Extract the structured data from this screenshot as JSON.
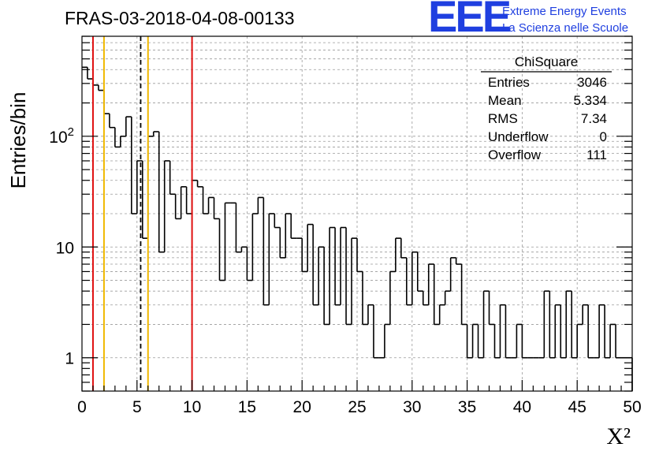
{
  "header": {
    "title": "FRAS-03-2018-04-08-00133",
    "logo": {
      "mark": "EEE",
      "line1": "Extreme Energy Events",
      "line2": "La Scienza nelle Scuole"
    }
  },
  "stats_box": {
    "title": "ChiSquare",
    "rows": [
      {
        "label": "Entries",
        "value": "3046"
      },
      {
        "label": "Mean",
        "value": "5.334"
      },
      {
        "label": "RMS",
        "value": "7.34"
      },
      {
        "label": "Underflow",
        "value": "0"
      },
      {
        "label": "Overflow",
        "value": "111"
      }
    ]
  },
  "chart_data": {
    "type": "histogram",
    "title": "FRAS-03-2018-04-08-00133",
    "xlabel": "X²",
    "ylabel": "Entries/bin",
    "xlim": [
      0,
      50
    ],
    "ylim": [
      0.5,
      800
    ],
    "yscale": "log",
    "bin_width": 0.5,
    "x_ticks": [
      "0",
      "5",
      "10",
      "15",
      "20",
      "25",
      "30",
      "35",
      "40",
      "45",
      "50"
    ],
    "y_ticks": [
      {
        "label": "1",
        "value": 1
      },
      {
        "label": "10",
        "value": 10
      },
      {
        "label": "10",
        "sup": "2",
        "value": 100
      }
    ],
    "grid": true,
    "counts": [
      420,
      330,
      290,
      260,
      160,
      120,
      80,
      100,
      150,
      20,
      60,
      12,
      100,
      110,
      9,
      60,
      30,
      18,
      35,
      20,
      40,
      35,
      20,
      28,
      18,
      5,
      25,
      25,
      9,
      10,
      5,
      20,
      28,
      3,
      20,
      15,
      8,
      20,
      12,
      12,
      6,
      16,
      3,
      10,
      2,
      15,
      3,
      15,
      2,
      12,
      6,
      2,
      3,
      1,
      1,
      2,
      6,
      12,
      8,
      3,
      9,
      4,
      3,
      7,
      2,
      3,
      4,
      8,
      7,
      2,
      1,
      2,
      1,
      4,
      2,
      1,
      3,
      1,
      1,
      2,
      1,
      1,
      1,
      1,
      4,
      1,
      3,
      1,
      4,
      1,
      2,
      3,
      1,
      1,
      3,
      1,
      2,
      1,
      1,
      1
    ],
    "vertical_lines": [
      {
        "x": 1,
        "color": "#e01010",
        "style": "solid"
      },
      {
        "x": 2,
        "color": "#f0b800",
        "style": "solid"
      },
      {
        "x": 5.334,
        "color": "#000000",
        "style": "dashed"
      },
      {
        "x": 6,
        "color": "#f0b800",
        "style": "solid"
      },
      {
        "x": 10,
        "color": "#e01010",
        "style": "solid"
      }
    ]
  }
}
